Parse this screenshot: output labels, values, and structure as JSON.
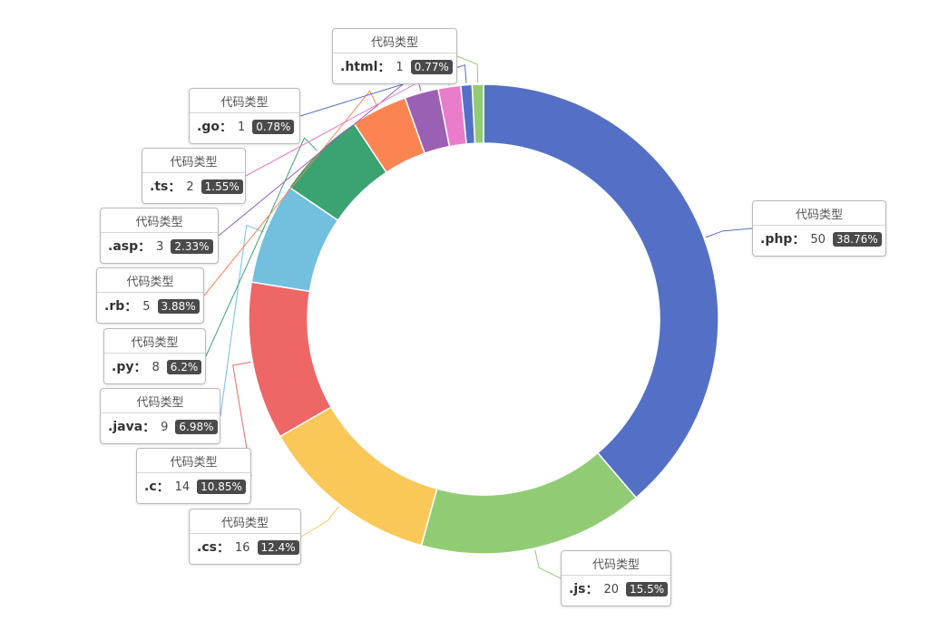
{
  "chart_data": {
    "type": "pie",
    "variant": "donut",
    "label_title": "代码类型",
    "slices": [
      {
        "name": ".php",
        "value": 50,
        "percent": "38.76%",
        "color": "#5470c6"
      },
      {
        "name": ".js",
        "value": 20,
        "percent": "15.5%",
        "color": "#91cc75"
      },
      {
        "name": ".cs",
        "value": 16,
        "percent": "12.4%",
        "color": "#fac858"
      },
      {
        "name": ".c",
        "value": 14,
        "percent": "10.85%",
        "color": "#ee6666"
      },
      {
        "name": ".java",
        "value": 9,
        "percent": "6.98%",
        "color": "#73c0de"
      },
      {
        "name": ".py",
        "value": 8,
        "percent": "6.2%",
        "color": "#3ba272"
      },
      {
        "name": ".rb",
        "value": 5,
        "percent": "3.88%",
        "color": "#fc8452"
      },
      {
        "name": ".asp",
        "value": 3,
        "percent": "2.33%",
        "color": "#9a60b4"
      },
      {
        "name": ".ts",
        "value": 2,
        "percent": "1.55%",
        "color": "#ea7ccc"
      },
      {
        "name": ".go",
        "value": 1,
        "percent": "0.78%",
        "color": "#5470c6"
      },
      {
        "name": ".html",
        "value": 1,
        "percent": "0.77%",
        "color": "#91cc75"
      }
    ]
  }
}
